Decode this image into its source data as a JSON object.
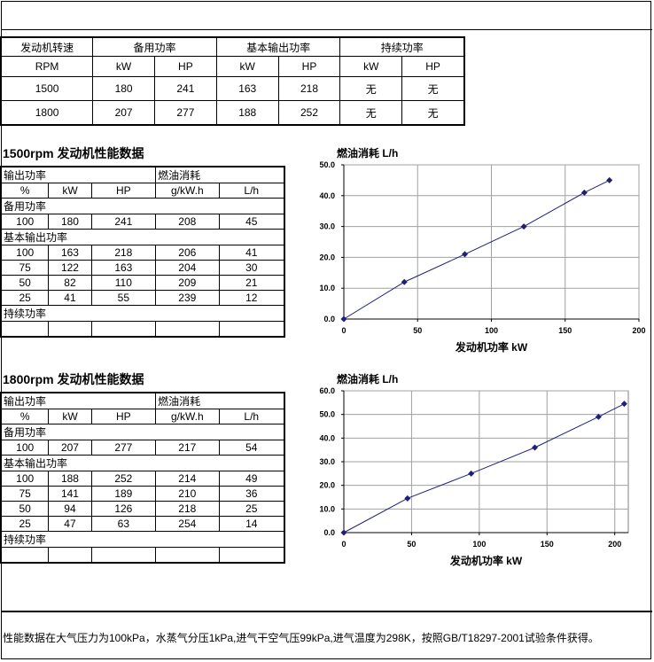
{
  "summary": {
    "h_speed": "发动机转速",
    "h_standby": "备用功率",
    "h_prime": "基本输出功率",
    "h_cont": "持续功率",
    "rpm": "RPM",
    "kw": "kW",
    "hp": "HP",
    "rows": [
      {
        "rpm": "1500",
        "sb_kw": "180",
        "sb_hp": "241",
        "pr_kw": "163",
        "pr_hp": "218",
        "ct_kw": "无",
        "ct_hp": "无"
      },
      {
        "rpm": "1800",
        "sb_kw": "207",
        "sb_hp": "277",
        "pr_kw": "188",
        "pr_hp": "252",
        "ct_kw": "无",
        "ct_hp": "无"
      }
    ]
  },
  "perf1500": {
    "title": "1500rpm 发动机性能数据",
    "h_output": "输出功率",
    "h_fuel": "燃油消耗",
    "c_pct": "%",
    "c_kw": "kW",
    "c_hp": "HP",
    "c_gkwh": "g/kW.h",
    "c_lh": "L/h",
    "sec_standby": "备用功率",
    "standby": {
      "pct": "100",
      "kw": "180",
      "hp": "241",
      "g": "208",
      "l": "45"
    },
    "sec_prime": "基本输出功率",
    "prime": [
      {
        "pct": "100",
        "kw": "163",
        "hp": "218",
        "g": "206",
        "l": "41"
      },
      {
        "pct": "75",
        "kw": "122",
        "hp": "163",
        "g": "204",
        "l": "30"
      },
      {
        "pct": "50",
        "kw": "82",
        "hp": "110",
        "g": "209",
        "l": "21"
      },
      {
        "pct": "25",
        "kw": "41",
        "hp": "55",
        "g": "239",
        "l": "12"
      }
    ],
    "sec_cont": "持续功率"
  },
  "perf1800": {
    "title": "1800rpm 发动机性能数据",
    "h_output": "输出功率",
    "h_fuel": "燃油消耗",
    "c_pct": "%",
    "c_kw": "kW",
    "c_hp": "HP",
    "c_gkwh": "g/kW.h",
    "c_lh": "L/h",
    "sec_standby": "备用功率",
    "standby": {
      "pct": "100",
      "kw": "207",
      "hp": "277",
      "g": "217",
      "l": "54"
    },
    "sec_prime": "基本输出功率",
    "prime": [
      {
        "pct": "100",
        "kw": "188",
        "hp": "252",
        "g": "214",
        "l": "49"
      },
      {
        "pct": "75",
        "kw": "141",
        "hp": "189",
        "g": "210",
        "l": "36"
      },
      {
        "pct": "50",
        "kw": "94",
        "hp": "126",
        "g": "218",
        "l": "25"
      },
      {
        "pct": "25",
        "kw": "47",
        "hp": "63",
        "g": "254",
        "l": "14"
      }
    ],
    "sec_cont": "持续功率"
  },
  "chart_data": [
    {
      "type": "line",
      "ylabel": "燃油消耗 L/h",
      "xlabel": "发动机功率 kW",
      "xlim": [
        0,
        200
      ],
      "ylim": [
        0,
        50
      ],
      "xticks": [
        0,
        50,
        100,
        150,
        200
      ],
      "yticks": [
        0,
        10,
        20,
        30,
        40,
        50
      ],
      "ytick_labels": [
        "0.0",
        "10.0",
        "20.0",
        "30.0",
        "40.0",
        "50.0"
      ],
      "grid": true,
      "color": "#1f1f7a",
      "points": [
        [
          0,
          0
        ],
        [
          41,
          12
        ],
        [
          82,
          21
        ],
        [
          122,
          30
        ],
        [
          163,
          41
        ],
        [
          180,
          45
        ]
      ]
    },
    {
      "type": "line",
      "ylabel": "燃油消耗 L/h",
      "xlabel": "发动机功率 kW",
      "xlim": [
        0,
        210
      ],
      "ylim": [
        0,
        60
      ],
      "xticks": [
        0,
        50,
        100,
        150,
        200
      ],
      "yticks": [
        0,
        10,
        20,
        30,
        40,
        50,
        60
      ],
      "ytick_labels": [
        "0.0",
        "10.0",
        "20.0",
        "30.0",
        "40.0",
        "50.0",
        "60.0"
      ],
      "grid": true,
      "color": "#1f1f7a",
      "points": [
        [
          0,
          0
        ],
        [
          47,
          14.5
        ],
        [
          94,
          25
        ],
        [
          141,
          36
        ],
        [
          188,
          49
        ],
        [
          207,
          54.5
        ]
      ]
    }
  ],
  "note": "性能数据在大气压力为100kPa，水蒸气分压1kPa,进气干空气压99kPa,进气温度为298K，按照GB/T18297-2001试验条件获得。"
}
